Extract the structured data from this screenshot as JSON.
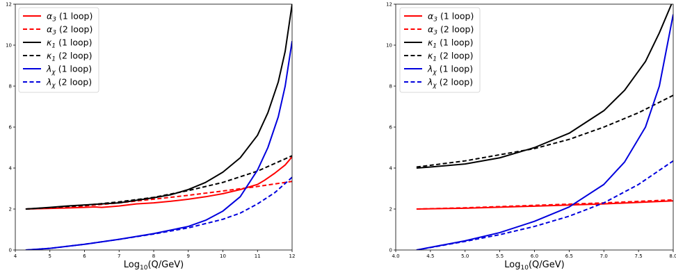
{
  "chart_data": [
    {
      "type": "line",
      "xlabel": "Log10(Q/GeV)",
      "xlim": [
        4,
        12
      ],
      "ylim": [
        0,
        12
      ],
      "xticks": [
        "4",
        "5",
        "6",
        "7",
        "8",
        "9",
        "10",
        "11",
        "12"
      ],
      "yticks": [
        "0",
        "2",
        "4",
        "6",
        "8",
        "10",
        "12"
      ],
      "grid": false,
      "legend_position": "top-left",
      "series": [
        {
          "key": "a3_1l",
          "sym": "α",
          "sub": "3",
          "loop": " (1 loop)",
          "color": "#ff0000",
          "style": "solid",
          "x": [
            4.3,
            5,
            5.5,
            6,
            6.3,
            6.5,
            7,
            7.5,
            8,
            8.5,
            9,
            9.5,
            10,
            10.5,
            11,
            11.2,
            11.5,
            11.8,
            12
          ],
          "y": [
            2.0,
            2.03,
            2.05,
            2.08,
            2.1,
            2.08,
            2.15,
            2.25,
            2.3,
            2.38,
            2.48,
            2.6,
            2.75,
            2.95,
            3.2,
            3.4,
            3.75,
            4.15,
            4.55
          ]
        },
        {
          "key": "a3_2l",
          "sym": "α",
          "sub": "3",
          "loop": " (2 loop)",
          "color": "#ff0000",
          "style": "dashed",
          "x": [
            4.3,
            5,
            6,
            7,
            8,
            9,
            10,
            11,
            12
          ],
          "y": [
            2.0,
            2.05,
            2.15,
            2.3,
            2.48,
            2.67,
            2.88,
            3.1,
            3.35
          ]
        },
        {
          "key": "k1_1l",
          "sym": "κ",
          "sub": "1",
          "loop": " (1 loop)",
          "color": "#000000",
          "style": "solid",
          "x": [
            4.3,
            5,
            5.5,
            6,
            7,
            8,
            8.5,
            9,
            9.5,
            10,
            10.5,
            11,
            11.3,
            11.6,
            11.8,
            12
          ],
          "y": [
            2.0,
            2.08,
            2.15,
            2.2,
            2.3,
            2.55,
            2.7,
            2.95,
            3.3,
            3.8,
            4.5,
            5.6,
            6.7,
            8.2,
            9.7,
            12.0
          ]
        },
        {
          "key": "k1_2l",
          "sym": "κ",
          "sub": "1",
          "loop": " (2 loop)",
          "color": "#000000",
          "style": "dashed",
          "x": [
            4.3,
            5,
            6,
            7,
            8,
            9,
            10,
            11,
            12
          ],
          "y": [
            2.0,
            2.07,
            2.18,
            2.35,
            2.57,
            2.9,
            3.3,
            3.85,
            4.6
          ]
        },
        {
          "key": "lx_1l",
          "sym": "λ",
          "sub": "χ",
          "loop": " (1 loop)",
          "color": "#0000dd",
          "style": "solid",
          "x": [
            4.3,
            5,
            6,
            7,
            8,
            9,
            9.5,
            10,
            10.5,
            11,
            11.3,
            11.6,
            11.8,
            12
          ],
          "y": [
            0,
            0.08,
            0.28,
            0.52,
            0.8,
            1.15,
            1.45,
            1.9,
            2.6,
            3.9,
            5.0,
            6.5,
            8.0,
            10.2
          ]
        },
        {
          "key": "lx_2l",
          "sym": "λ",
          "sub": "χ",
          "loop": " (2 loop)",
          "color": "#0000dd",
          "style": "dashed",
          "x": [
            4.3,
            5,
            6,
            7,
            8,
            9,
            10,
            10.5,
            11,
            11.5,
            12
          ],
          "y": [
            0,
            0.08,
            0.28,
            0.52,
            0.78,
            1.08,
            1.5,
            1.8,
            2.25,
            2.8,
            3.55
          ]
        }
      ]
    },
    {
      "type": "line",
      "xlabel": "Log10(Q/GeV)",
      "xlim": [
        4.0,
        8.0
      ],
      "ylim": [
        0,
        12
      ],
      "xticks": [
        "4.0",
        "4.5",
        "5.0",
        "5.5",
        "6.0",
        "6.5",
        "7.0",
        "7.5",
        "8.0"
      ],
      "yticks": [
        "0",
        "2",
        "4",
        "6",
        "8",
        "10",
        "12"
      ],
      "grid": false,
      "legend_position": "top-left",
      "series": [
        {
          "key": "a3_1l",
          "sym": "α",
          "sub": "3",
          "loop": " (1 loop)",
          "color": "#ff0000",
          "style": "solid",
          "x": [
            4.3,
            5,
            6,
            7,
            8
          ],
          "y": [
            2.0,
            2.04,
            2.14,
            2.25,
            2.4
          ]
        },
        {
          "key": "a3_2l",
          "sym": "α",
          "sub": "3",
          "loop": " (2 loop)",
          "color": "#ff0000",
          "style": "dashed",
          "x": [
            4.3,
            5,
            6,
            7,
            8
          ],
          "y": [
            2.0,
            2.06,
            2.18,
            2.3,
            2.45
          ]
        },
        {
          "key": "k1_1l",
          "sym": "κ",
          "sub": "1",
          "loop": " (1 loop)",
          "color": "#000000",
          "style": "solid",
          "x": [
            4.3,
            4.5,
            5,
            5.5,
            6,
            6.5,
            7,
            7.3,
            7.6,
            7.8,
            8
          ],
          "y": [
            4.0,
            4.05,
            4.2,
            4.5,
            5.0,
            5.7,
            6.8,
            7.8,
            9.2,
            10.6,
            12.2
          ]
        },
        {
          "key": "k1_2l",
          "sym": "κ",
          "sub": "1",
          "loop": " (2 loop)",
          "color": "#000000",
          "style": "dashed",
          "x": [
            4.3,
            5,
            5.5,
            6,
            6.5,
            7,
            7.5,
            8
          ],
          "y": [
            4.05,
            4.35,
            4.65,
            4.95,
            5.4,
            6.0,
            6.7,
            7.55
          ]
        },
        {
          "key": "lx_1l",
          "sym": "λ",
          "sub": "χ",
          "loop": " (1 loop)",
          "color": "#0000dd",
          "style": "solid",
          "x": [
            4.3,
            5,
            5.5,
            6,
            6.5,
            7,
            7.3,
            7.6,
            7.8,
            8
          ],
          "y": [
            0,
            0.45,
            0.85,
            1.4,
            2.1,
            3.2,
            4.3,
            6.0,
            8.0,
            11.5
          ]
        },
        {
          "key": "lx_2l",
          "sym": "λ",
          "sub": "χ",
          "loop": " (2 loop)",
          "color": "#0000dd",
          "style": "dashed",
          "x": [
            4.3,
            5,
            5.5,
            6,
            6.5,
            7,
            7.5,
            8
          ],
          "y": [
            0,
            0.42,
            0.75,
            1.15,
            1.65,
            2.3,
            3.2,
            4.35
          ]
        }
      ]
    }
  ]
}
